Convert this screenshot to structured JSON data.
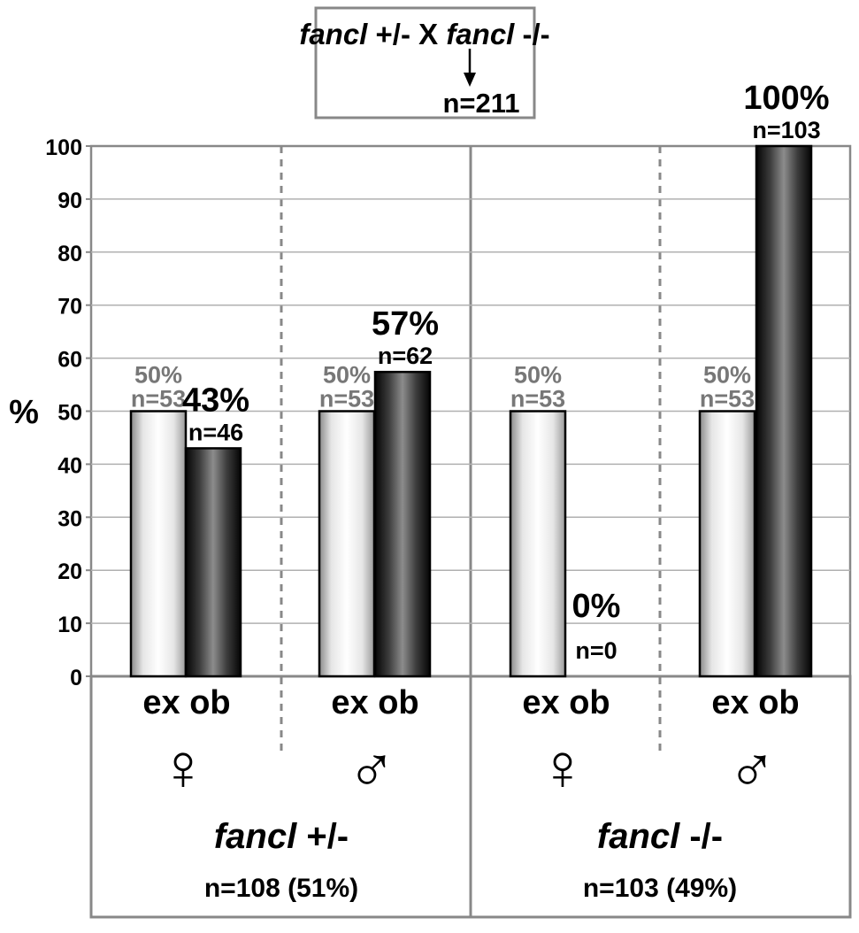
{
  "header": {
    "cross_genotype_a": "fancl",
    "cross_sign_a": " +/- X ",
    "cross_genotype_b": "fancl",
    "cross_sign_b": " -/-",
    "total_n": "n=211"
  },
  "colors": {
    "expected_bar": "#f0f0f0",
    "observed_bar": "#4a4a4a",
    "expected_label": "#777777",
    "frame": "#888888",
    "grid": "#b0b0b0"
  },
  "chart_data": {
    "type": "bar",
    "ylabel": "%",
    "ylim": [
      0,
      100
    ],
    "yticks": [
      0,
      10,
      20,
      30,
      40,
      50,
      60,
      70,
      80,
      90,
      100
    ],
    "grid": true,
    "series_keys": [
      "ex",
      "ob"
    ],
    "groups": [
      {
        "genotype": "fancl +/-",
        "genotype_italic": "fancl",
        "genotype_suffix": " +/-",
        "n_label": "n=108 (51%)",
        "sexes": [
          {
            "sex": "female",
            "symbol": "♀",
            "bar_labels": "ex ob",
            "expected": {
              "value": 50,
              "pct_label": "50%",
              "n_label": "n=53"
            },
            "observed": {
              "value": 43,
              "pct_label": "43%",
              "n_label": "n=46"
            }
          },
          {
            "sex": "male",
            "symbol": "♂",
            "bar_labels": "ex ob",
            "expected": {
              "value": 50,
              "pct_label": "50%",
              "n_label": "n=53"
            },
            "observed": {
              "value": 57.4,
              "pct_label": "57%",
              "n_label": "n=62"
            }
          }
        ]
      },
      {
        "genotype": "fancl -/-",
        "genotype_italic": "fancl",
        "genotype_suffix": " -/-",
        "n_label": "n=103 (49%)",
        "sexes": [
          {
            "sex": "female",
            "symbol": "♀",
            "bar_labels": "ex ob",
            "expected": {
              "value": 50,
              "pct_label": "50%",
              "n_label": "n=53"
            },
            "observed": {
              "value": 0,
              "pct_label": "0%",
              "n_label": "n=0"
            }
          },
          {
            "sex": "male",
            "symbol": "♂",
            "bar_labels": "ex ob",
            "expected": {
              "value": 50,
              "pct_label": "50%",
              "n_label": "n=53"
            },
            "observed": {
              "value": 100,
              "pct_label": "100%",
              "n_label": "n=103"
            }
          }
        ]
      }
    ]
  }
}
